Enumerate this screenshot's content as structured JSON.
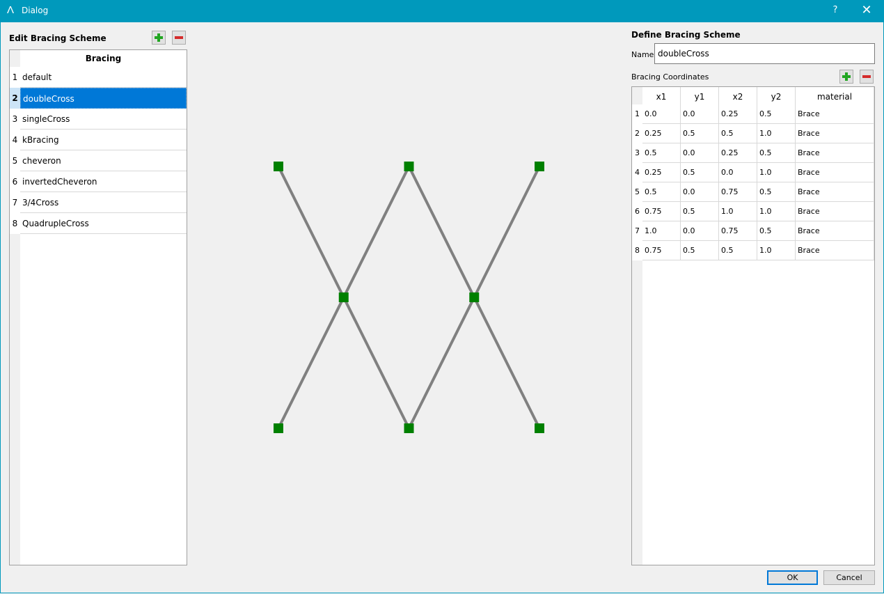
{
  "window": {
    "title": "Dialog",
    "app_icon_glyph": "Λ",
    "help_label": "?",
    "close_label": "✕"
  },
  "edit_panel": {
    "title": "Edit Bracing Scheme",
    "column_header": "Bracing",
    "items": [
      {
        "n": "1",
        "label": "default"
      },
      {
        "n": "2",
        "label": "doubleCross"
      },
      {
        "n": "3",
        "label": "singleCross"
      },
      {
        "n": "4",
        "label": "kBracing"
      },
      {
        "n": "5",
        "label": "cheveron"
      },
      {
        "n": "6",
        "label": "invertedCheveron"
      },
      {
        "n": "7",
        "label": "3/4Cross"
      },
      {
        "n": "8",
        "label": "QuadrupleCross"
      }
    ],
    "selected_index": 1
  },
  "define_panel": {
    "title": "Define Bracing Scheme",
    "name_label": "Name",
    "name_value": "doubleCross",
    "coords_label": "Bracing Coordinates",
    "columns": [
      "x1",
      "y1",
      "x2",
      "y2",
      "material"
    ],
    "rows": [
      {
        "n": "1",
        "x1": "0.0",
        "y1": "0.0",
        "x2": "0.25",
        "y2": "0.5",
        "material": "Brace"
      },
      {
        "n": "2",
        "x1": "0.25",
        "y1": "0.5",
        "x2": "0.5",
        "y2": "1.0",
        "material": "Brace"
      },
      {
        "n": "3",
        "x1": "0.5",
        "y1": "0.0",
        "x2": "0.25",
        "y2": "0.5",
        "material": "Brace"
      },
      {
        "n": "4",
        "x1": "0.25",
        "y1": "0.5",
        "x2": "0.0",
        "y2": "1.0",
        "material": "Brace"
      },
      {
        "n": "5",
        "x1": "0.5",
        "y1": "0.0",
        "x2": "0.75",
        "y2": "0.5",
        "material": "Brace"
      },
      {
        "n": "6",
        "x1": "0.75",
        "y1": "0.5",
        "x2": "1.0",
        "y2": "1.0",
        "material": "Brace"
      },
      {
        "n": "7",
        "x1": "1.0",
        "y1": "0.0",
        "x2": "0.75",
        "y2": "0.5",
        "material": "Brace"
      },
      {
        "n": "8",
        "x1": "0.75",
        "y1": "0.5",
        "x2": "0.5",
        "y2": "1.0",
        "material": "Brace"
      }
    ]
  },
  "preview": {
    "brace_color": "#808080",
    "node_color": "#008000"
  },
  "buttons": {
    "ok": "OK",
    "cancel": "Cancel"
  },
  "colors": {
    "titlebar": "#0099bc",
    "selection": "#0078d7"
  }
}
